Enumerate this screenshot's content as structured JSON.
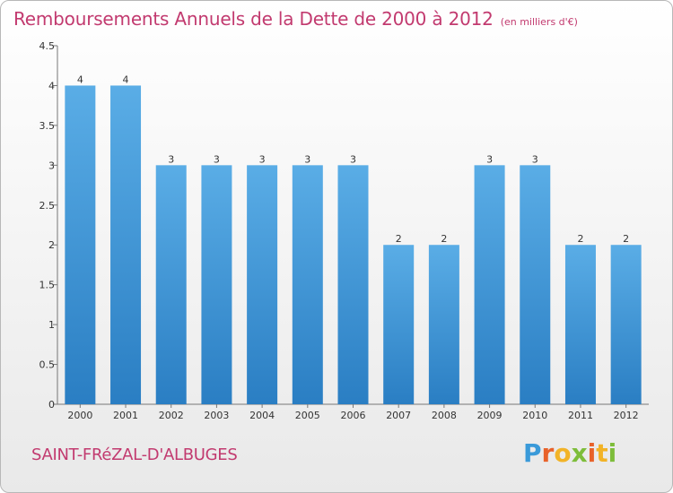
{
  "title": "Remboursements Annuels de la Dette de 2000 à 2012",
  "unit_note": "(en milliers d'€)",
  "city": "SAINT-FRéZAL-D'ALBUGES",
  "logo": {
    "letters": [
      "P",
      "r",
      "o",
      "x",
      "i",
      "t",
      "i"
    ],
    "colors": [
      "#3a9ad9",
      "#e8622a",
      "#f2b327",
      "#7dbd3a",
      "#e8622a",
      "#f2b327",
      "#7dbd3a"
    ]
  },
  "colors": {
    "bar_top": "#5aade6",
    "bar_bottom": "#2a7ec3",
    "title": "#c23a6f",
    "axis": "#777777"
  },
  "chart_data": {
    "type": "bar",
    "categories": [
      "2000",
      "2001",
      "2002",
      "2003",
      "2004",
      "2005",
      "2006",
      "2007",
      "2008",
      "2009",
      "2010",
      "2011",
      "2012"
    ],
    "values": [
      4,
      4,
      3,
      3,
      3,
      3,
      3,
      2,
      2,
      3,
      3,
      2,
      2
    ],
    "data_labels": [
      "4",
      "4",
      "3",
      "3",
      "3",
      "3",
      "3",
      "2",
      "2",
      "3",
      "3",
      "2",
      "2"
    ],
    "ylim": [
      0,
      4.5
    ],
    "yticks": [
      0,
      0.5,
      1,
      1.5,
      2,
      2.5,
      3,
      3.5,
      4,
      4.5
    ],
    "ytick_labels": [
      "0",
      "0.5",
      "1",
      "1.5",
      "2",
      "2.5",
      "3",
      "3.5",
      "4",
      "4.5"
    ],
    "grid": false
  }
}
